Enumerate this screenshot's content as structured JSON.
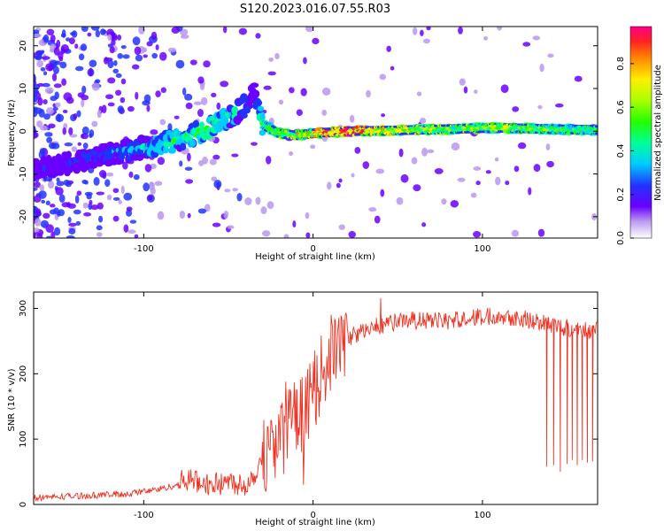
{
  "title": "S120.2023.016.07.55.R03",
  "colors": {
    "snr_line": "#ee3322",
    "axis": "#000000"
  },
  "chart_data": [
    {
      "type": "heatmap",
      "xlabel": "Height of straight line (km)",
      "ylabel": "Frequency (Hz)",
      "xlim": [
        -165,
        168
      ],
      "ylim": [
        -25,
        24.5
      ],
      "x_ticks": [
        -100,
        0,
        100
      ],
      "x_tick_labels": [
        "-100",
        "0",
        "100"
      ],
      "y_ticks": [
        -20,
        -10,
        0,
        10,
        20
      ],
      "y_tick_labels": [
        "-20",
        "-10",
        "0",
        "10",
        "20"
      ],
      "colorbar": {
        "label": "Normalized spectral amplitude",
        "range": [
          0,
          0.97
        ],
        "ticks": [
          0.0,
          0.2,
          0.4,
          0.6,
          0.8
        ],
        "tick_labels": [
          "0.0",
          "0.2",
          "0.4",
          "0.6",
          "0.8"
        ]
      },
      "ridge": {
        "x": [
          -165,
          -150,
          -130,
          -110,
          -95,
          -80,
          -65,
          -50,
          -40,
          -35,
          -30,
          -20,
          -10,
          0,
          20,
          50,
          80,
          110,
          140,
          168
        ],
        "freq": [
          -9,
          -8,
          -6,
          -4.5,
          -3.5,
          -2,
          0,
          3,
          6,
          10,
          1.5,
          -0.5,
          -1.0,
          -0.5,
          0,
          0.2,
          0.5,
          0.8,
          0.5,
          0.3
        ],
        "amplitude": [
          0.15,
          0.2,
          0.25,
          0.3,
          0.4,
          0.45,
          0.5,
          0.45,
          0.35,
          0.2,
          0.45,
          0.6,
          0.7,
          0.8,
          0.95,
          0.7,
          0.6,
          0.65,
          0.55,
          0.5
        ]
      }
    },
    {
      "type": "line",
      "xlabel": "Height of straight line (km)",
      "ylabel": "SNR (10 * v/v)",
      "xlim": [
        -165,
        168
      ],
      "ylim": [
        0,
        325
      ],
      "x_ticks": [
        -100,
        0,
        100
      ],
      "x_tick_labels": [
        "-100",
        "0",
        "100"
      ],
      "y_ticks": [
        0,
        100,
        200,
        300
      ],
      "y_tick_labels": [
        "0",
        "100",
        "200",
        "300"
      ],
      "series": [
        {
          "x": [
            -165,
            -150,
            -130,
            -110,
            -100,
            -90,
            -80,
            -75,
            -70,
            -60,
            -50,
            -40,
            -35,
            -30,
            -25,
            -20,
            -15,
            -12,
            -10,
            -5,
            0,
            5,
            10,
            20,
            30,
            40,
            50,
            60,
            70,
            80,
            90,
            100,
            110,
            120,
            130,
            140,
            150,
            160,
            168
          ],
          "y": [
            10,
            12,
            14,
            16,
            20,
            24,
            30,
            40,
            35,
            30,
            35,
            30,
            45,
            70,
            90,
            100,
            140,
            150,
            120,
            150,
            170,
            200,
            230,
            255,
            265,
            275,
            280,
            282,
            280,
            280,
            285,
            287,
            290,
            286,
            282,
            275,
            270,
            268,
            265
          ],
          "dips": [
            {
              "x": 138,
              "y": 58
            },
            {
              "x": 142,
              "y": 60
            },
            {
              "x": 146,
              "y": 50
            },
            {
              "x": 150,
              "y": 62
            },
            {
              "x": 153,
              "y": 68
            },
            {
              "x": 156,
              "y": 60
            },
            {
              "x": 159,
              "y": 68
            },
            {
              "x": 162,
              "y": 64
            },
            {
              "x": 165,
              "y": 66
            }
          ]
        }
      ]
    }
  ]
}
